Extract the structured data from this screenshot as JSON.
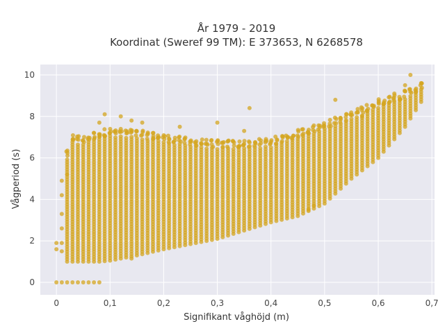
{
  "chart_data": {
    "type": "scatter",
    "title_line1": "År 1979 - 2019",
    "title_line2": "Koordinat (Sweref 99 TM): E 373653, N 6268578",
    "xlabel": "Signifikant våghöjd (m)",
    "ylabel": "Vågperiod (s)",
    "xlim": [
      -0.03,
      0.705
    ],
    "ylim": [
      -0.6,
      10.5
    ],
    "x_ticks": [
      0,
      0.1,
      0.2,
      0.3,
      0.4,
      0.5,
      0.6,
      0.7
    ],
    "x_tick_labels": [
      "0",
      "0,1",
      "0,2",
      "0,3",
      "0,4",
      "0,5",
      "0,6",
      "0,7"
    ],
    "y_ticks": [
      0,
      2,
      4,
      6,
      8,
      10
    ],
    "y_tick_labels": [
      "0",
      "2",
      "4",
      "6",
      "8",
      "10"
    ],
    "grid": true,
    "marker_color": "#D4A520",
    "background_color": "#E8E8F0",
    "envelope": [
      {
        "x": 0.02,
        "y_min": 1.0,
        "y_max": 6.0
      },
      {
        "x": 0.03,
        "y_min": 1.0,
        "y_max": 6.8
      },
      {
        "x": 0.05,
        "y_min": 1.0,
        "y_max": 6.7
      },
      {
        "x": 0.08,
        "y_min": 1.0,
        "y_max": 7.0
      },
      {
        "x": 0.1,
        "y_min": 1.05,
        "y_max": 7.1
      },
      {
        "x": 0.15,
        "y_min": 1.3,
        "y_max": 7.0
      },
      {
        "x": 0.2,
        "y_min": 1.6,
        "y_max": 6.8
      },
      {
        "x": 0.25,
        "y_min": 1.85,
        "y_max": 6.6
      },
      {
        "x": 0.3,
        "y_min": 2.1,
        "y_max": 6.5
      },
      {
        "x": 0.35,
        "y_min": 2.5,
        "y_max": 6.5
      },
      {
        "x": 0.4,
        "y_min": 2.9,
        "y_max": 6.6
      },
      {
        "x": 0.45,
        "y_min": 3.2,
        "y_max": 7.0
      },
      {
        "x": 0.5,
        "y_min": 3.8,
        "y_max": 7.4
      },
      {
        "x": 0.55,
        "y_min": 5.0,
        "y_max": 7.9
      },
      {
        "x": 0.6,
        "y_min": 6.0,
        "y_max": 8.5
      },
      {
        "x": 0.65,
        "y_min": 7.5,
        "y_max": 8.9
      },
      {
        "x": 0.68,
        "y_min": 8.7,
        "y_max": 9.3
      }
    ],
    "outliers": [
      {
        "x": 0.0,
        "y": 0.0
      },
      {
        "x": 0.01,
        "y": 0.0
      },
      {
        "x": 0.02,
        "y": 0.0
      },
      {
        "x": 0.03,
        "y": 0.0
      },
      {
        "x": 0.04,
        "y": 0.0
      },
      {
        "x": 0.05,
        "y": 0.0
      },
      {
        "x": 0.06,
        "y": 0.0
      },
      {
        "x": 0.07,
        "y": 0.0
      },
      {
        "x": 0.08,
        "y": 0.0
      },
      {
        "x": 0.0,
        "y": 1.9
      },
      {
        "x": 0.0,
        "y": 1.6
      },
      {
        "x": 0.01,
        "y": 1.9
      },
      {
        "x": 0.01,
        "y": 1.5
      },
      {
        "x": 0.01,
        "y": 2.6
      },
      {
        "x": 0.01,
        "y": 3.3
      },
      {
        "x": 0.01,
        "y": 4.2
      },
      {
        "x": 0.01,
        "y": 4.9
      },
      {
        "x": 0.02,
        "y": 5.2
      },
      {
        "x": 0.08,
        "y": 7.7
      },
      {
        "x": 0.09,
        "y": 8.1
      },
      {
        "x": 0.12,
        "y": 8.0
      },
      {
        "x": 0.14,
        "y": 7.8
      },
      {
        "x": 0.16,
        "y": 7.7
      },
      {
        "x": 0.18,
        "y": 7.2
      },
      {
        "x": 0.23,
        "y": 7.5
      },
      {
        "x": 0.3,
        "y": 7.7
      },
      {
        "x": 0.35,
        "y": 7.3
      },
      {
        "x": 0.36,
        "y": 8.4
      },
      {
        "x": 0.52,
        "y": 8.8
      },
      {
        "x": 0.57,
        "y": 8.0
      },
      {
        "x": 0.63,
        "y": 9.1
      },
      {
        "x": 0.65,
        "y": 9.5
      },
      {
        "x": 0.66,
        "y": 10.0
      },
      {
        "x": 0.68,
        "y": 9.6
      },
      {
        "x": 0.14,
        "y": 1.15
      },
      {
        "x": 0.48,
        "y": 3.7
      },
      {
        "x": 0.47,
        "y": 3.5
      }
    ]
  }
}
